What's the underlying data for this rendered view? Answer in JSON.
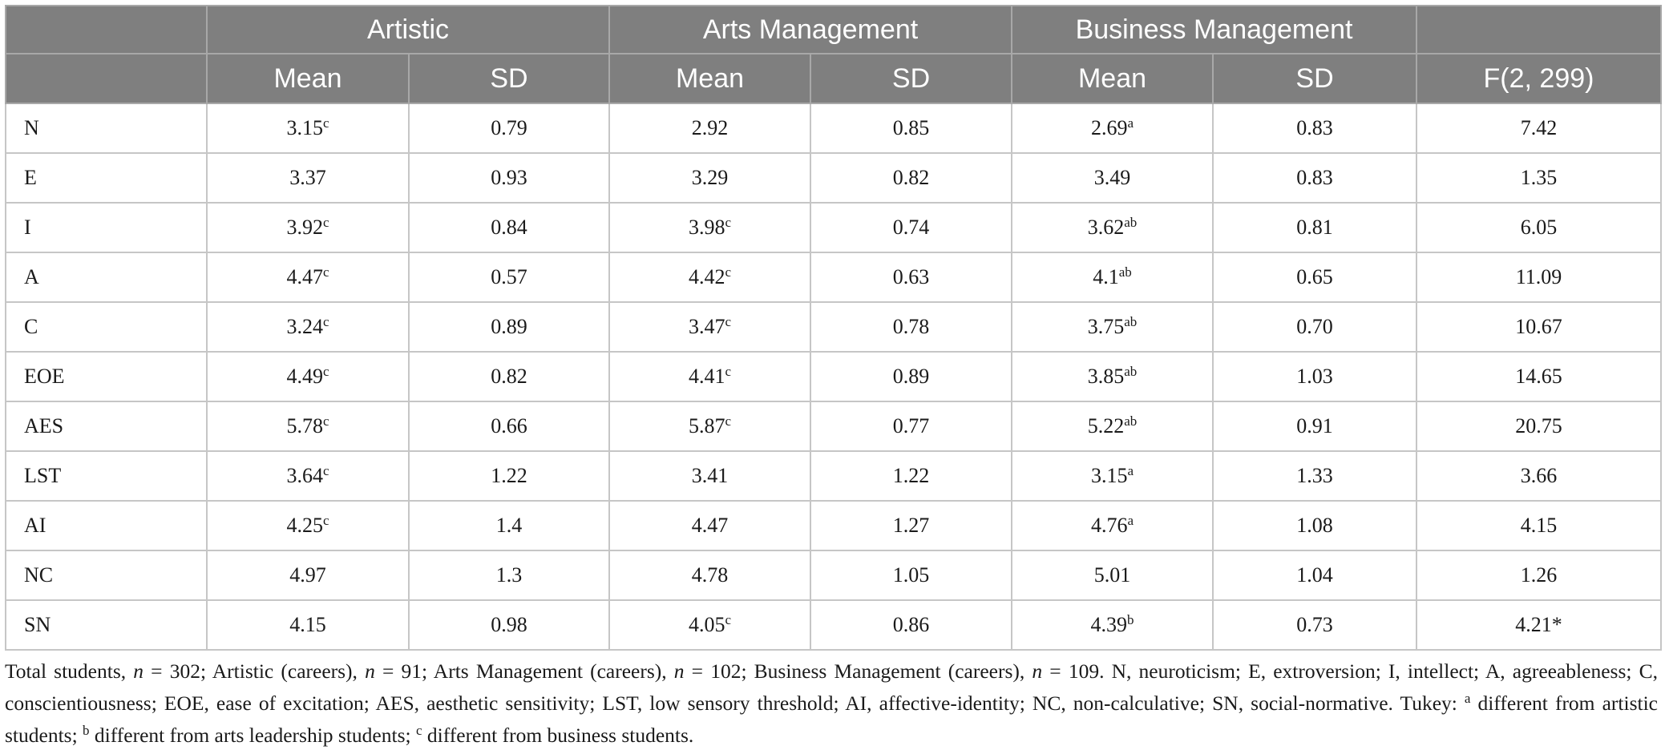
{
  "table": {
    "groups": [
      "",
      "Artistic",
      "Arts Management",
      "Business Management",
      ""
    ],
    "subheaders": [
      "",
      "Mean",
      "SD",
      "Mean",
      "SD",
      "Mean",
      "SD",
      "F(2, 299)"
    ],
    "rows": [
      {
        "label": "N",
        "c": [
          {
            "v": "3.15",
            "s": "c"
          },
          {
            "v": "0.79",
            "s": ""
          },
          {
            "v": "2.92",
            "s": ""
          },
          {
            "v": "0.85",
            "s": ""
          },
          {
            "v": "2.69",
            "s": "a"
          },
          {
            "v": "0.83",
            "s": ""
          },
          {
            "v": "7.42",
            "s": ""
          }
        ]
      },
      {
        "label": "E",
        "c": [
          {
            "v": "3.37",
            "s": ""
          },
          {
            "v": "0.93",
            "s": ""
          },
          {
            "v": "3.29",
            "s": ""
          },
          {
            "v": "0.82",
            "s": ""
          },
          {
            "v": "3.49",
            "s": ""
          },
          {
            "v": "0.83",
            "s": ""
          },
          {
            "v": "1.35",
            "s": ""
          }
        ]
      },
      {
        "label": "I",
        "c": [
          {
            "v": "3.92",
            "s": "c"
          },
          {
            "v": "0.84",
            "s": ""
          },
          {
            "v": "3.98",
            "s": "c"
          },
          {
            "v": "0.74",
            "s": ""
          },
          {
            "v": "3.62",
            "s": "ab"
          },
          {
            "v": "0.81",
            "s": ""
          },
          {
            "v": "6.05",
            "s": ""
          }
        ]
      },
      {
        "label": "A",
        "c": [
          {
            "v": "4.47",
            "s": "c"
          },
          {
            "v": "0.57",
            "s": ""
          },
          {
            "v": "4.42",
            "s": "c"
          },
          {
            "v": "0.63",
            "s": ""
          },
          {
            "v": "4.1",
            "s": "ab"
          },
          {
            "v": "0.65",
            "s": ""
          },
          {
            "v": "11.09",
            "s": ""
          }
        ]
      },
      {
        "label": "C",
        "c": [
          {
            "v": "3.24",
            "s": "c"
          },
          {
            "v": "0.89",
            "s": ""
          },
          {
            "v": "3.47",
            "s": "c"
          },
          {
            "v": "0.78",
            "s": ""
          },
          {
            "v": "3.75",
            "s": "ab"
          },
          {
            "v": "0.70",
            "s": ""
          },
          {
            "v": "10.67",
            "s": ""
          }
        ]
      },
      {
        "label": "EOE",
        "c": [
          {
            "v": "4.49",
            "s": "c"
          },
          {
            "v": "0.82",
            "s": ""
          },
          {
            "v": "4.41",
            "s": "c"
          },
          {
            "v": "0.89",
            "s": ""
          },
          {
            "v": "3.85",
            "s": "ab"
          },
          {
            "v": "1.03",
            "s": ""
          },
          {
            "v": "14.65",
            "s": ""
          }
        ]
      },
      {
        "label": "AES",
        "c": [
          {
            "v": "5.78",
            "s": "c"
          },
          {
            "v": "0.66",
            "s": ""
          },
          {
            "v": "5.87",
            "s": "c"
          },
          {
            "v": "0.77",
            "s": ""
          },
          {
            "v": "5.22",
            "s": "ab"
          },
          {
            "v": "0.91",
            "s": ""
          },
          {
            "v": "20.75",
            "s": ""
          }
        ]
      },
      {
        "label": "LST",
        "c": [
          {
            "v": "3.64",
            "s": "c"
          },
          {
            "v": "1.22",
            "s": ""
          },
          {
            "v": "3.41",
            "s": ""
          },
          {
            "v": "1.22",
            "s": ""
          },
          {
            "v": "3.15",
            "s": "a"
          },
          {
            "v": "1.33",
            "s": ""
          },
          {
            "v": "3.66",
            "s": ""
          }
        ]
      },
      {
        "label": "AI",
        "c": [
          {
            "v": "4.25",
            "s": "c"
          },
          {
            "v": "1.4",
            "s": ""
          },
          {
            "v": "4.47",
            "s": ""
          },
          {
            "v": "1.27",
            "s": ""
          },
          {
            "v": "4.76",
            "s": "a"
          },
          {
            "v": "1.08",
            "s": ""
          },
          {
            "v": "4.15",
            "s": ""
          }
        ]
      },
      {
        "label": "NC",
        "c": [
          {
            "v": "4.97",
            "s": ""
          },
          {
            "v": "1.3",
            "s": ""
          },
          {
            "v": "4.78",
            "s": ""
          },
          {
            "v": "1.05",
            "s": ""
          },
          {
            "v": "5.01",
            "s": ""
          },
          {
            "v": "1.04",
            "s": ""
          },
          {
            "v": "1.26",
            "s": ""
          }
        ]
      },
      {
        "label": "SN",
        "c": [
          {
            "v": "4.15",
            "s": ""
          },
          {
            "v": "0.98",
            "s": ""
          },
          {
            "v": "4.05",
            "s": "c"
          },
          {
            "v": "0.86",
            "s": ""
          },
          {
            "v": "4.39",
            "s": "b"
          },
          {
            "v": "0.73",
            "s": ""
          },
          {
            "v": "4.21*",
            "s": ""
          }
        ]
      }
    ]
  },
  "footnote": {
    "p1": "Total students, ",
    "n": "n",
    "p2": " = 302; Artistic (careers), ",
    "p3": " = 91; Arts Management (careers), ",
    "p4": " = 102; Business Management (careers), ",
    "p5": " = 109. N, neuroticism; E, extroversion; I, intellect; A, agreeableness; C, conscientiousness; EOE, ease of excitation; AES, aesthetic sensitivity; LST, low sensory threshold; AI, affective-identity; NC, non-calculative; SN, social-normative. Tukey: ",
    "sa": "a",
    "p6": " different from artistic students; ",
    "sb": "b",
    "p7": " different from arts leadership students; ",
    "sc": "c",
    "p8": " different from business students."
  }
}
